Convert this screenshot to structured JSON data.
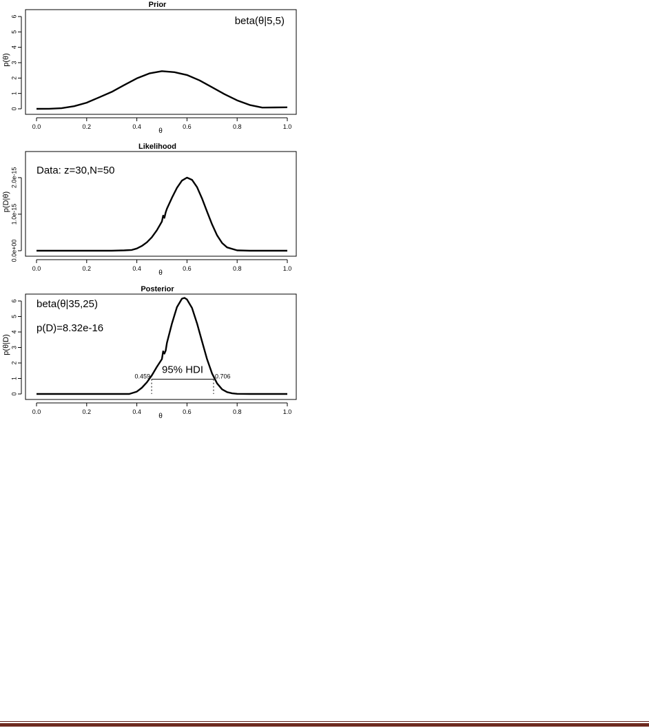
{
  "footer": {
    "rule_color": "#6e2a1f"
  },
  "chart_data": [
    {
      "type": "line",
      "title": "Prior",
      "xlabel": "θ",
      "ylabel": "p(θ)",
      "xlim": [
        0,
        1
      ],
      "ylim": [
        0,
        6
      ],
      "xticks": [
        "0.0",
        "0.2",
        "0.4",
        "0.6",
        "0.8",
        "1.0"
      ],
      "yticks": [
        "0",
        "1",
        "2",
        "3",
        "4",
        "5",
        "6"
      ],
      "annotations": [
        "beta(θ|5,5)"
      ],
      "series": [
        {
          "x": [
            0.0,
            0.05,
            0.1,
            0.15,
            0.2,
            0.25,
            0.3,
            0.35,
            0.4,
            0.45,
            0.5,
            0.55,
            0.6,
            0.65,
            0.7,
            0.75,
            0.8,
            0.85,
            0.9,
            0.95,
            1.0
          ],
          "y": [
            0.0,
            0.003,
            0.04,
            0.17,
            0.4,
            0.75,
            1.1,
            1.55,
            1.98,
            2.3,
            2.45,
            2.38,
            2.2,
            1.85,
            1.4,
            0.95,
            0.55,
            0.25,
            0.08,
            0.09,
            0.1
          ]
        }
      ]
    },
    {
      "type": "line",
      "title": "Likelihood",
      "xlabel": "θ",
      "ylabel": "p(D|θ)",
      "xlim": [
        0,
        1
      ],
      "ylim": [
        0,
        2.3e-15
      ],
      "xticks": [
        "0.0",
        "0.2",
        "0.4",
        "0.6",
        "0.8",
        "1.0"
      ],
      "yticks": [
        "0.0e+00",
        "1.0e-15",
        "2.0e-15"
      ],
      "ytick_values": [
        0,
        1e-15,
        2e-15
      ],
      "annotations": [
        "Data: z=30,N=50"
      ],
      "series": [
        {
          "x": [
            0.0,
            0.3,
            0.35,
            0.38,
            0.4,
            0.42,
            0.44,
            0.46,
            0.48,
            0.5,
            0.505,
            0.51,
            0.515,
            0.52,
            0.54,
            0.56,
            0.58,
            0.6,
            0.62,
            0.64,
            0.66,
            0.68,
            0.7,
            0.72,
            0.74,
            0.76,
            0.8,
            0.85,
            1.0
          ],
          "y": [
            0,
            0,
            1e-17,
            2e-17,
            6e-17,
            1.3e-16,
            2.3e-16,
            3.7e-16,
            5.6e-16,
            8e-16,
            9.6e-16,
            9e-16,
            1.05e-15,
            1.15e-15,
            1.45e-15,
            1.72e-15,
            1.92e-15,
            2e-15,
            1.94e-15,
            1.74e-15,
            1.43e-15,
            1.07e-15,
            7.2e-16,
            4.2e-16,
            2.1e-16,
            9e-17,
            1e-17,
            0,
            0
          ]
        }
      ]
    },
    {
      "type": "line",
      "title": "Posterior",
      "xlabel": "θ",
      "ylabel": "p(θ|D)",
      "xlim": [
        0,
        1
      ],
      "ylim": [
        0,
        6
      ],
      "xticks": [
        "0.0",
        "0.2",
        "0.4",
        "0.6",
        "0.8",
        "1.0"
      ],
      "yticks": [
        "0",
        "1",
        "2",
        "3",
        "4",
        "5",
        "6"
      ],
      "annotations": [
        "beta(θ|35,25)",
        "p(D)=8.32e-16"
      ],
      "hdi": {
        "label": "95% HDI",
        "low": 0.459,
        "high": 0.706,
        "low_label": "0.459",
        "high_label": "0.706",
        "height": 0.95
      },
      "series": [
        {
          "x": [
            0.0,
            0.37,
            0.4,
            0.42,
            0.44,
            0.46,
            0.48,
            0.5,
            0.505,
            0.51,
            0.515,
            0.52,
            0.54,
            0.56,
            0.58,
            0.59,
            0.6,
            0.62,
            0.64,
            0.66,
            0.68,
            0.7,
            0.72,
            0.74,
            0.76,
            0.78,
            0.8,
            0.85,
            1.0
          ],
          "y": [
            0.0,
            0.0,
            0.15,
            0.4,
            0.75,
            1.2,
            1.75,
            2.25,
            2.75,
            2.6,
            2.8,
            3.3,
            4.55,
            5.6,
            6.15,
            6.2,
            6.1,
            5.55,
            4.55,
            3.4,
            2.25,
            1.32,
            0.68,
            0.3,
            0.12,
            0.04,
            0.01,
            0.0,
            0.0
          ]
        }
      ]
    }
  ]
}
